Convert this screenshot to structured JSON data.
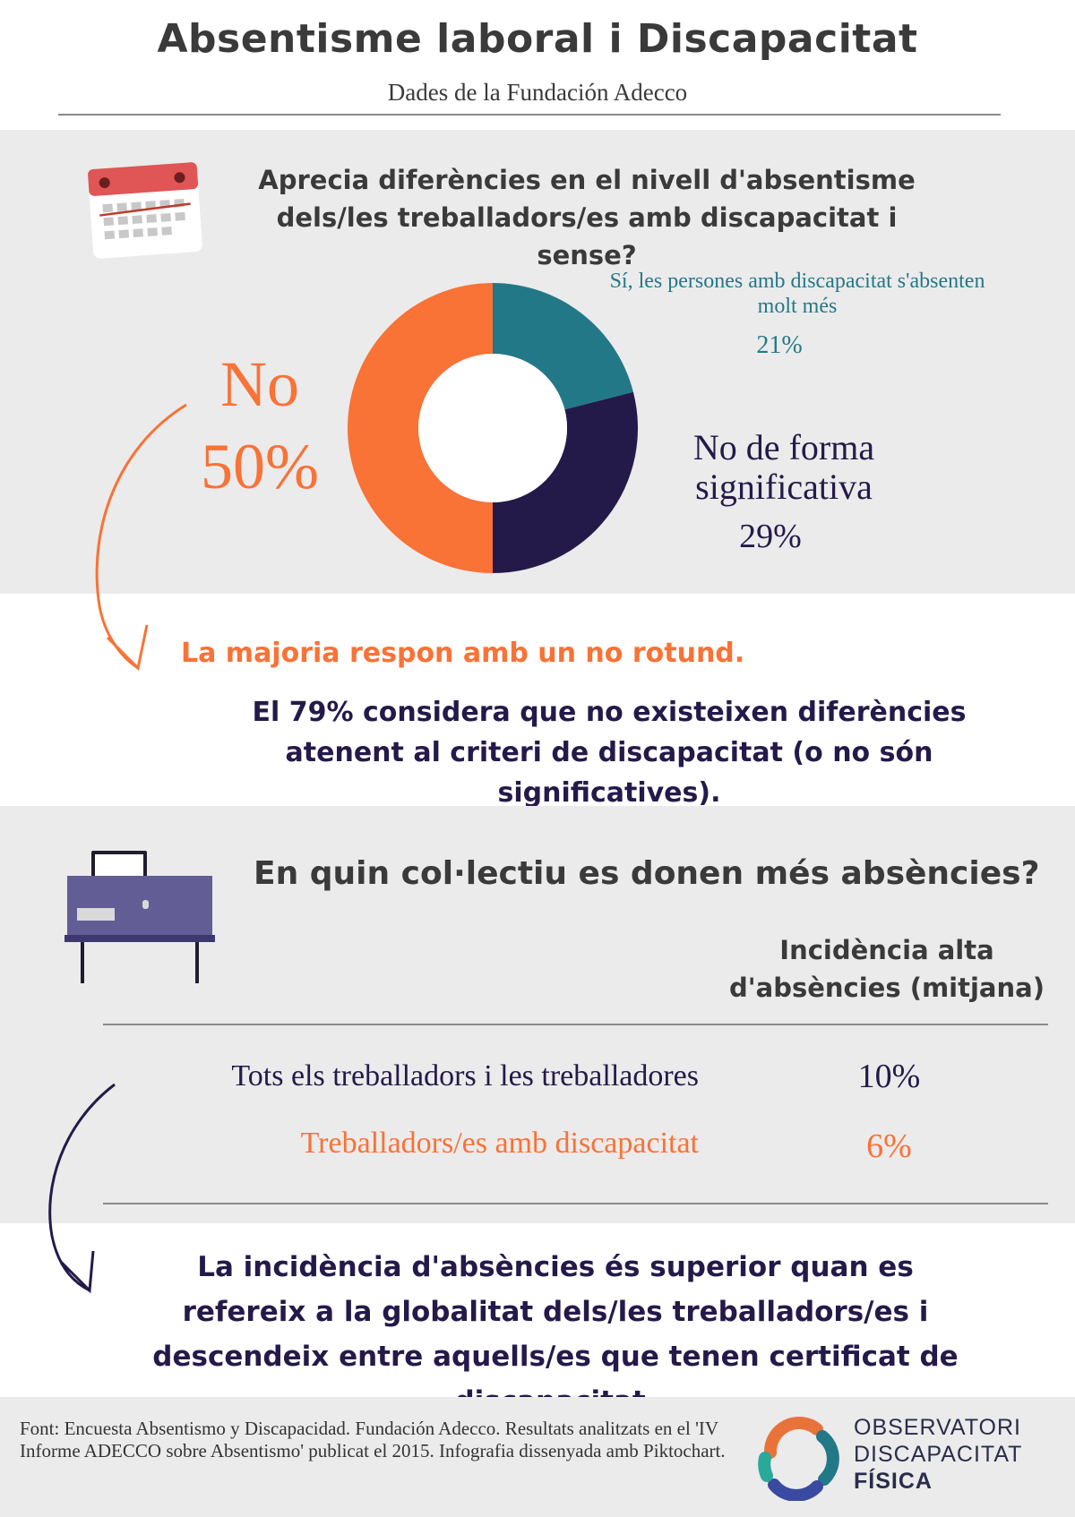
{
  "header": {
    "title": "Absentisme laboral i Discapacitat",
    "subtitle": "Dades de la Fundación Adecco"
  },
  "section1": {
    "question": "Aprecia diferències en el nivell d'absentisme dels/les treballadors/es amb discapacitat i sense?",
    "icon": "calendar-icon",
    "note": "La majoria respon amb un no rotund.",
    "conclusion": "El 79% considera que no existeixen diferències atenent al criteri de discapacitat (o no són significatives)."
  },
  "chart_data": [
    {
      "type": "pie",
      "variant": "donut",
      "slices": [
        {
          "label": "Sí, les persones amb discapacitat s'absenten molt més",
          "value": 21,
          "display": "21%",
          "color": "#237888"
        },
        {
          "label": "No de forma significativa",
          "value": 29,
          "display": "29%",
          "color": "#241a4a"
        },
        {
          "label": "No",
          "value": 50,
          "display": "50%",
          "color": "#f97236"
        }
      ]
    },
    {
      "type": "table",
      "columns": [
        "",
        "Incidència alta d'absències (mitjana)"
      ],
      "rows": [
        {
          "label": "Tots els treballadors i les treballadores",
          "value": 10,
          "display": "10%",
          "color": "#241a4a"
        },
        {
          "label": "Treballadors/es amb discapacitat",
          "value": 6,
          "display": "6%",
          "color": "#f97236"
        }
      ]
    }
  ],
  "section2": {
    "question": "En quin col·lectiu es donen més absències?",
    "icon": "desk-computer-icon",
    "conclusion": "La incidència d'absències és superior quan es refereix a la globalitat dels/les treballadors/es i descendeix entre aquells/es que tenen certificat de discapacitat."
  },
  "footer": {
    "source": "Font: Encuesta Absentismo y Discapacidad. Fundación Adecco. Resultats analitzats en el 'IV Informe ADECCO sobre Absentismo' publicat el 2015. Infografia dissenyada amb Piktochart.",
    "logo_line1": "OBSERVATORI",
    "logo_line2": "DISCAPACITAT",
    "logo_line3": "FÍSICA"
  },
  "colors": {
    "orange": "#f97236",
    "navy": "#241a4a",
    "teal": "#237888",
    "gray_band": "#ebebeb"
  }
}
